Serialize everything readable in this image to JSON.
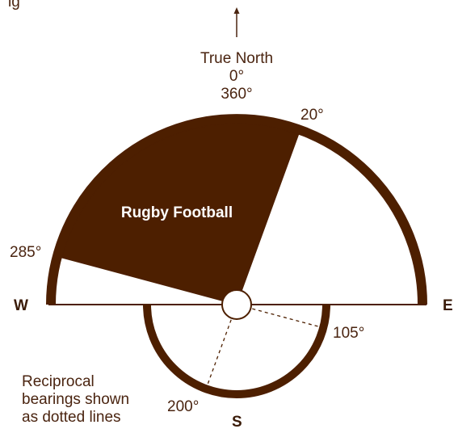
{
  "header": {
    "partial_text": "ig"
  },
  "north": {
    "label": "True North",
    "deg0": "0°",
    "deg360": "360°"
  },
  "sector": {
    "label": "Rugby Football",
    "bearing_from": 285,
    "bearing_to": 20,
    "from_label": "285°",
    "to_label": "20°"
  },
  "reciprocal": {
    "bearing_from": 105,
    "bearing_to": 200,
    "from_label": "105°",
    "to_label": "200°"
  },
  "compass": {
    "west": "W",
    "east": "E",
    "south": "S"
  },
  "note": {
    "line1": "Reciprocal",
    "line2": "bearings shown",
    "line3": "as dotted lines"
  },
  "colors": {
    "brown": "#4d1f00",
    "text": "#4a2410"
  }
}
